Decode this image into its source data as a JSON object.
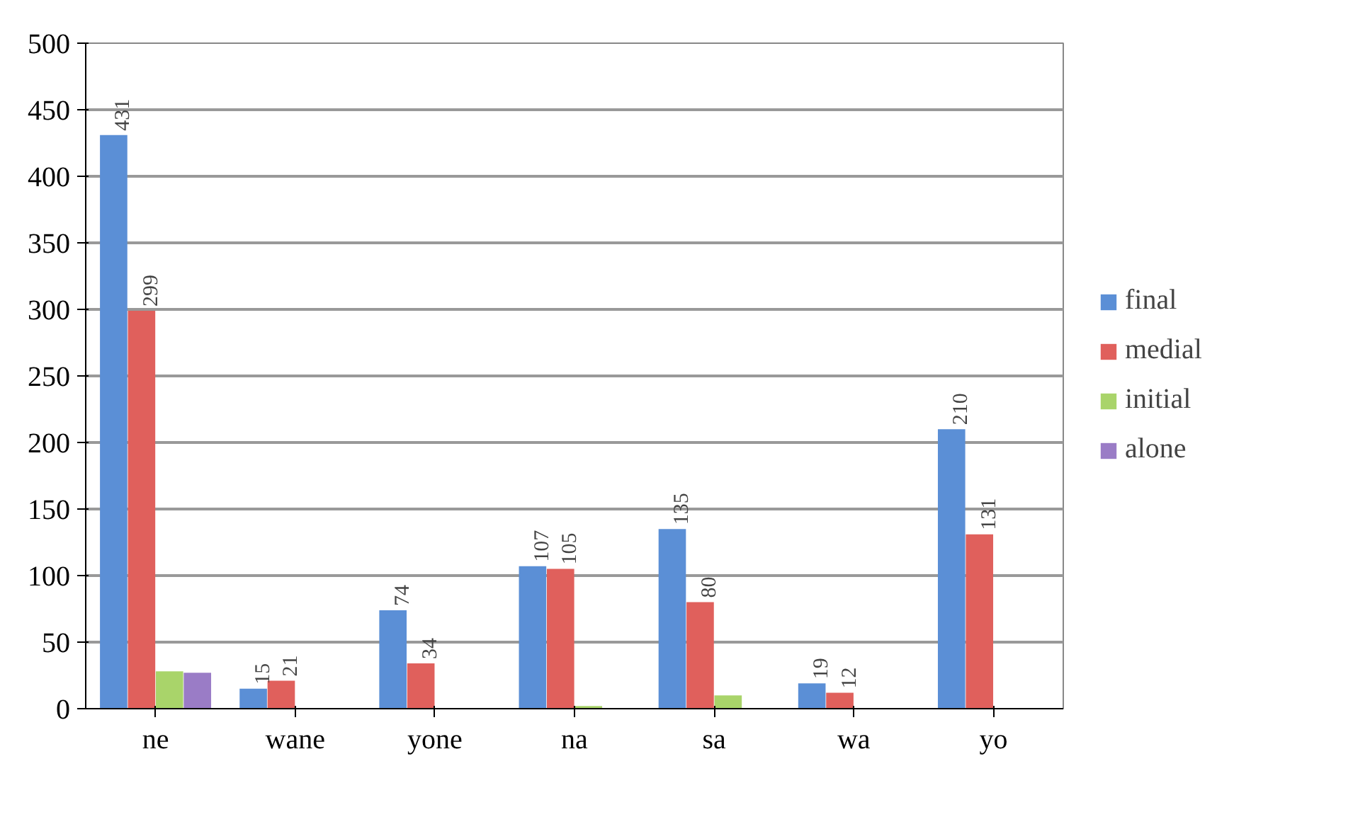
{
  "chart_data": {
    "type": "bar",
    "categories": [
      "ne",
      "wane",
      "yone",
      "na",
      "sa",
      "wa",
      "yo"
    ],
    "series": [
      {
        "name": "final",
        "color": "#5b8fd6",
        "values": [
          431,
          15,
          74,
          107,
          135,
          19,
          210
        ],
        "value_labels": [
          "431",
          "15",
          "74",
          "107",
          "135",
          "19",
          "210"
        ]
      },
      {
        "name": "medial",
        "color": "#e0605c",
        "values": [
          299,
          21,
          34,
          105,
          80,
          12,
          131
        ],
        "value_labels": [
          "299",
          "21",
          "34",
          "105",
          "80",
          "12",
          "131"
        ]
      },
      {
        "name": "initial",
        "color": "#a9d46a",
        "values": [
          28,
          0,
          0,
          2,
          10,
          0,
          0
        ]
      },
      {
        "name": "alone",
        "color": "#9a7cc6",
        "values": [
          27,
          0,
          0,
          0,
          0,
          0,
          0
        ]
      }
    ],
    "ylim": [
      0,
      500
    ],
    "yticks": [
      0,
      50,
      100,
      150,
      200,
      250,
      300,
      350,
      400,
      450,
      500
    ],
    "grid": "y",
    "legend": "right"
  }
}
